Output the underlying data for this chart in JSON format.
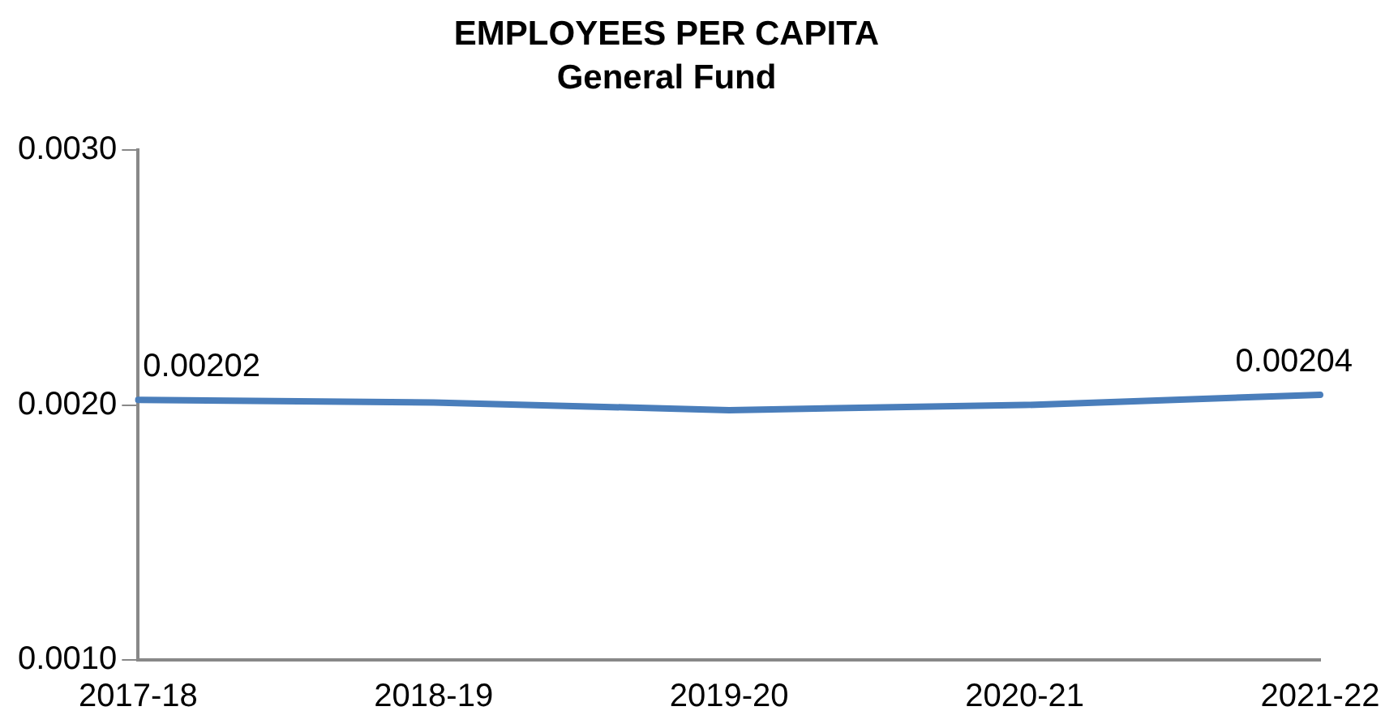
{
  "chart_data": {
    "type": "line",
    "title": "EMPLOYEES PER CAPITA",
    "subtitle": "General Fund",
    "categories": [
      "2017-18",
      "2018-19",
      "2019-20",
      "2020-21",
      "2021-22"
    ],
    "series": [
      {
        "color": "#4a7ebb",
        "values": [
          0.00202,
          0.00201,
          0.00198,
          0.002,
          0.00204
        ],
        "value_labels": [
          "0.00202",
          null,
          null,
          null,
          "0.00204"
        ]
      }
    ],
    "ylim": [
      0.001,
      0.003
    ],
    "yticks": [
      {
        "value": 0.001,
        "label": "0.0010"
      },
      {
        "value": 0.002,
        "label": "0.0020"
      },
      {
        "value": 0.003,
        "label": "0.0030"
      }
    ],
    "grid": false,
    "legend": false,
    "marker": "none",
    "line_style": "solid"
  }
}
